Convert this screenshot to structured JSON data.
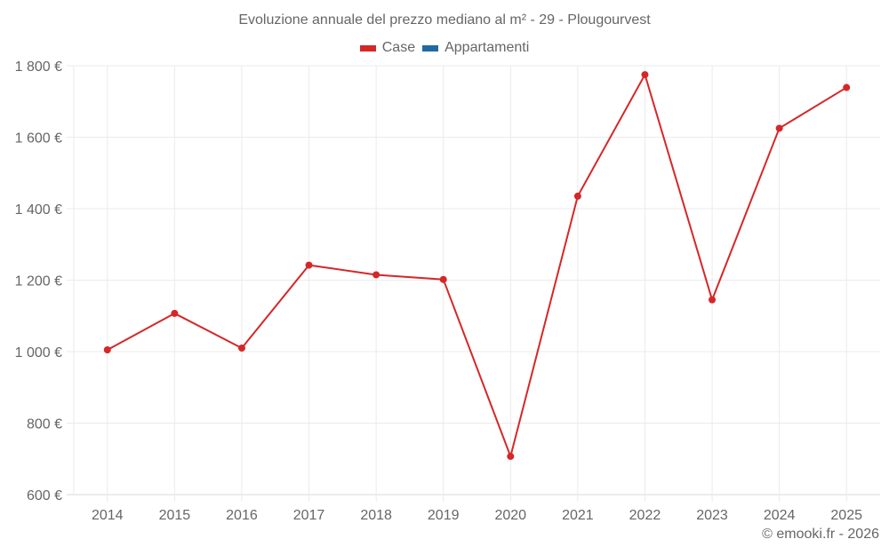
{
  "title": "Evoluzione annuale del prezzo mediano al m² - 29 - Plougourvest",
  "legend": [
    {
      "label": "Case",
      "color": "#d62728"
    },
    {
      "label": "Appartamenti",
      "color": "#1f6aa5"
    }
  ],
  "footer": "© emooki.fr - 2026",
  "colors": {
    "grid": "#ebebeb",
    "axis": "#d9d9d9",
    "line": "#d62728"
  },
  "chart_data": {
    "type": "line",
    "title": "Evoluzione annuale del prezzo mediano al m² - 29 - Plougourvest",
    "xlabel": "",
    "ylabel": "",
    "x": [
      "2014",
      "2015",
      "2016",
      "2017",
      "2018",
      "2019",
      "2020",
      "2021",
      "2022",
      "2023",
      "2024",
      "2025"
    ],
    "series": [
      {
        "name": "Case",
        "color": "#d62728",
        "values": [
          1005,
          1107,
          1010,
          1242,
          1215,
          1202,
          707,
          1435,
          1775,
          1145,
          1625,
          1739
        ]
      },
      {
        "name": "Appartamenti",
        "color": "#1f6aa5",
        "values": []
      }
    ],
    "ylim": [
      600,
      1800
    ],
    "yticks": [
      600,
      800,
      1000,
      1200,
      1400,
      1600,
      1800
    ],
    "ytick_labels": [
      "600 €",
      "800 €",
      "1 000 €",
      "1 200 €",
      "1 400 €",
      "1 600 €",
      "1 800 €"
    ],
    "grid": true,
    "legend_position": "top"
  }
}
